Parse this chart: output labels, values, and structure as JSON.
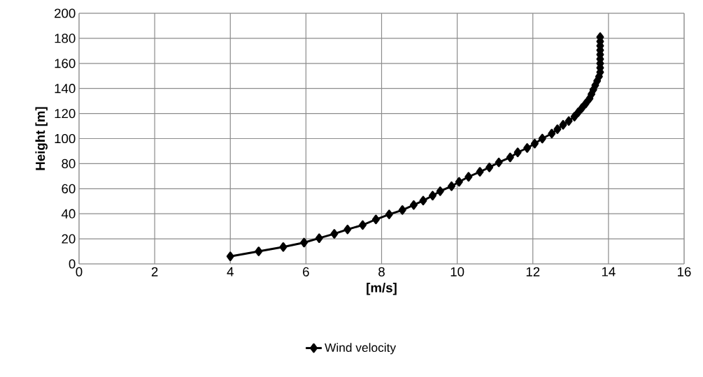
{
  "chart_data": {
    "type": "line",
    "xlabel": "[m/s]",
    "ylabel": "Height [m]",
    "xlim": [
      0,
      16
    ],
    "xticks": [
      0,
      2,
      4,
      6,
      8,
      10,
      12,
      14,
      16
    ],
    "ylim": [
      0,
      200
    ],
    "yticks": [
      0,
      20,
      40,
      60,
      80,
      100,
      120,
      140,
      160,
      180,
      200
    ],
    "grid": true,
    "legend": "bottom",
    "marker": "diamond",
    "line_style": "solid",
    "series": [
      {
        "name": "Wind velocity",
        "color": "#000000",
        "x": [
          4.0,
          4.75,
          5.4,
          5.95,
          6.35,
          6.75,
          7.1,
          7.5,
          7.85,
          8.2,
          8.55,
          8.85,
          9.1,
          9.35,
          9.55,
          9.85,
          10.05,
          10.3,
          10.6,
          10.85,
          11.1,
          11.4,
          11.6,
          11.85,
          12.05,
          12.25,
          12.5,
          12.65,
          12.8,
          12.95,
          13.1,
          13.2,
          13.3,
          13.4,
          13.5,
          13.55,
          13.6,
          13.65,
          13.7,
          13.75,
          13.78,
          13.78,
          13.78,
          13.78,
          13.78,
          13.78,
          13.78,
          13.78,
          13.78
        ],
        "values": [
          6,
          10,
          13.5,
          17,
          20.5,
          24,
          27.5,
          31,
          35.5,
          39.5,
          43,
          47,
          50.5,
          54.5,
          58,
          62,
          65.5,
          69.5,
          73.5,
          77,
          81,
          85,
          89,
          92.5,
          96,
          100,
          104,
          107.5,
          111,
          114,
          117.5,
          121,
          124.5,
          128,
          132,
          135.5,
          139,
          142.5,
          146,
          149.5,
          153,
          156.5,
          160,
          163.5,
          167,
          170.5,
          174,
          177.5,
          181
        ]
      }
    ]
  }
}
